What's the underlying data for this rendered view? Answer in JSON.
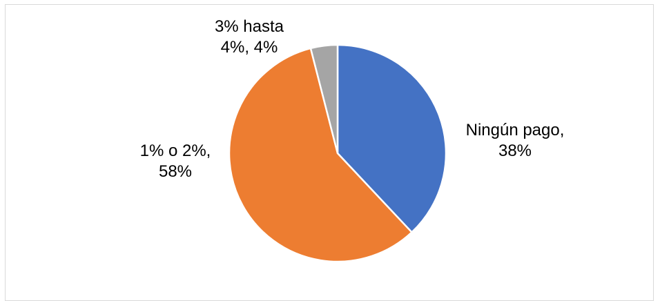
{
  "chart_data": {
    "type": "pie",
    "title": "",
    "slices": [
      {
        "name": "Ningún pago",
        "value": 38,
        "color": "#4472C4",
        "label_lines": [
          "Ningún pago,",
          "38%"
        ]
      },
      {
        "name": "1% o 2%",
        "value": 58,
        "color": "#ED7D31",
        "label_lines": [
          "1% o 2%,",
          "58%"
        ]
      },
      {
        "name": "3% hasta 4%",
        "value": 4,
        "color": "#A5A5A5",
        "label_lines": [
          "3% hasta",
          "4%, 4%"
        ]
      }
    ],
    "start_angle_deg": 0,
    "direction": "clockwise",
    "slice_border_color": "#ffffff"
  }
}
